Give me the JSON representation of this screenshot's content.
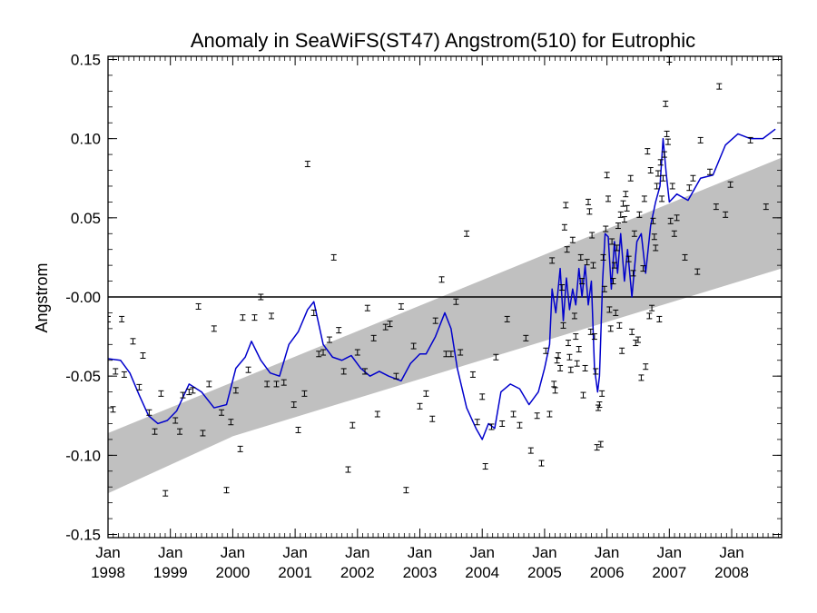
{
  "chart_data": {
    "type": "scatter",
    "title": "Anomaly in SeaWiFS(ST47) Angstrom(510) for Eutrophic",
    "xlabel": "",
    "ylabel": "Angstrom",
    "xlim": [
      1998.0,
      2008.8
    ],
    "ylim": [
      -0.152,
      0.152
    ],
    "y_ticks": [
      {
        "value": 0.15,
        "label": "0.15"
      },
      {
        "value": 0.1,
        "label": "0.10"
      },
      {
        "value": 0.05,
        "label": "0.05"
      },
      {
        "value": 0.0,
        "label": "-0.00"
      },
      {
        "value": -0.05,
        "label": "-0.05"
      },
      {
        "value": -0.1,
        "label": "-0.10"
      },
      {
        "value": -0.15,
        "label": "-0.15"
      }
    ],
    "x_ticks": [
      {
        "value": 1998.0,
        "month": "Jan",
        "year": "1998"
      },
      {
        "value": 1999.0,
        "month": "Jan",
        "year": "1999"
      },
      {
        "value": 2000.0,
        "month": "Jan",
        "year": "2000"
      },
      {
        "value": 2001.0,
        "month": "Jan",
        "year": "2001"
      },
      {
        "value": 2002.0,
        "month": "Jan",
        "year": "2002"
      },
      {
        "value": 2003.0,
        "month": "Jan",
        "year": "2003"
      },
      {
        "value": 2004.0,
        "month": "Jan",
        "year": "2004"
      },
      {
        "value": 2005.0,
        "month": "Jan",
        "year": "2005"
      },
      {
        "value": 2006.0,
        "month": "Jan",
        "year": "2006"
      },
      {
        "value": 2007.0,
        "month": "Jan",
        "year": "2007"
      },
      {
        "value": 2008.0,
        "month": "Jan",
        "year": "2008"
      }
    ],
    "zero_line": 0.0,
    "confidence_band": {
      "color": "#c0c0c0",
      "upper": [
        [
          1998.0,
          -0.086
        ],
        [
          2008.8,
          0.088
        ]
      ],
      "lower": [
        [
          1998.0,
          -0.124
        ],
        [
          2000.0,
          -0.088
        ],
        [
          2008.8,
          0.018
        ]
      ]
    },
    "smoothed_series": {
      "color": "#0000cc",
      "points": [
        [
          1998.0,
          -0.039
        ],
        [
          1998.2,
          -0.04
        ],
        [
          1998.35,
          -0.048
        ],
        [
          1998.5,
          -0.062
        ],
        [
          1998.65,
          -0.075
        ],
        [
          1998.8,
          -0.08
        ],
        [
          1998.95,
          -0.078
        ],
        [
          1999.1,
          -0.072
        ],
        [
          1999.3,
          -0.055
        ],
        [
          1999.5,
          -0.06
        ],
        [
          1999.7,
          -0.07
        ],
        [
          1999.9,
          -0.068
        ],
        [
          2000.05,
          -0.045
        ],
        [
          2000.2,
          -0.038
        ],
        [
          2000.3,
          -0.028
        ],
        [
          2000.45,
          -0.04
        ],
        [
          2000.6,
          -0.048
        ],
        [
          2000.75,
          -0.05
        ],
        [
          2000.9,
          -0.03
        ],
        [
          2001.05,
          -0.022
        ],
        [
          2001.2,
          -0.008
        ],
        [
          2001.3,
          -0.003
        ],
        [
          2001.45,
          -0.03
        ],
        [
          2001.6,
          -0.038
        ],
        [
          2001.75,
          -0.04
        ],
        [
          2001.9,
          -0.037
        ],
        [
          2002.05,
          -0.045
        ],
        [
          2002.2,
          -0.05
        ],
        [
          2002.35,
          -0.047
        ],
        [
          2002.5,
          -0.05
        ],
        [
          2002.7,
          -0.053
        ],
        [
          2002.85,
          -0.042
        ],
        [
          2003.0,
          -0.036
        ],
        [
          2003.1,
          -0.036
        ],
        [
          2003.25,
          -0.025
        ],
        [
          2003.4,
          -0.01
        ],
        [
          2003.5,
          -0.02
        ],
        [
          2003.6,
          -0.045
        ],
        [
          2003.75,
          -0.07
        ],
        [
          2003.9,
          -0.083
        ],
        [
          2004.0,
          -0.09
        ],
        [
          2004.1,
          -0.08
        ],
        [
          2004.2,
          -0.083
        ],
        [
          2004.3,
          -0.06
        ],
        [
          2004.45,
          -0.055
        ],
        [
          2004.6,
          -0.058
        ],
        [
          2004.75,
          -0.068
        ],
        [
          2004.9,
          -0.06
        ],
        [
          2005.0,
          -0.045
        ],
        [
          2005.08,
          -0.03
        ],
        [
          2005.12,
          0.005
        ],
        [
          2005.18,
          -0.01
        ],
        [
          2005.25,
          0.018
        ],
        [
          2005.3,
          -0.015
        ],
        [
          2005.35,
          0.012
        ],
        [
          2005.4,
          -0.008
        ],
        [
          2005.45,
          0.005
        ],
        [
          2005.5,
          -0.005
        ],
        [
          2005.55,
          0.018
        ],
        [
          2005.6,
          0.0
        ],
        [
          2005.65,
          0.02
        ],
        [
          2005.7,
          -0.005
        ],
        [
          2005.75,
          0.01
        ],
        [
          2005.8,
          -0.045
        ],
        [
          2005.85,
          -0.06
        ],
        [
          2005.88,
          -0.05
        ],
        [
          2005.93,
          0.01
        ],
        [
          2005.97,
          0.04
        ],
        [
          2006.02,
          0.038
        ],
        [
          2006.07,
          0.005
        ],
        [
          2006.12,
          0.035
        ],
        [
          2006.17,
          0.015
        ],
        [
          2006.22,
          0.04
        ],
        [
          2006.28,
          0.01
        ],
        [
          2006.33,
          0.03
        ],
        [
          2006.4,
          0.0
        ],
        [
          2006.48,
          0.035
        ],
        [
          2006.55,
          0.04
        ],
        [
          2006.62,
          0.015
        ],
        [
          2006.7,
          0.045
        ],
        [
          2006.78,
          0.06
        ],
        [
          2006.85,
          0.07
        ],
        [
          2006.9,
          0.1
        ],
        [
          2006.95,
          0.078
        ],
        [
          2007.0,
          0.06
        ],
        [
          2007.12,
          0.065
        ],
        [
          2007.3,
          0.061
        ],
        [
          2007.5,
          0.075
        ],
        [
          2007.7,
          0.077
        ],
        [
          2007.9,
          0.096
        ],
        [
          2008.1,
          0.103
        ],
        [
          2008.3,
          0.1
        ],
        [
          2008.5,
          0.1
        ],
        [
          2008.7,
          0.106
        ]
      ]
    },
    "points": [
      [
        1998.0,
        -0.014
      ],
      [
        1998.08,
        -0.071
      ],
      [
        1998.12,
        -0.047
      ],
      [
        1998.22,
        -0.014
      ],
      [
        1998.26,
        -0.049
      ],
      [
        1998.4,
        -0.028
      ],
      [
        1998.5,
        -0.057
      ],
      [
        1998.56,
        -0.037
      ],
      [
        1998.66,
        -0.073
      ],
      [
        1998.75,
        -0.085
      ],
      [
        1998.85,
        -0.061
      ],
      [
        1998.92,
        -0.124
      ],
      [
        1999.08,
        -0.078
      ],
      [
        1999.15,
        -0.085
      ],
      [
        1999.2,
        -0.062
      ],
      [
        1999.3,
        -0.06
      ],
      [
        1999.36,
        -0.059
      ],
      [
        1999.45,
        -0.006
      ],
      [
        1999.52,
        -0.086
      ],
      [
        1999.62,
        -0.055
      ],
      [
        1999.7,
        -0.02
      ],
      [
        1999.82,
        -0.073
      ],
      [
        1999.9,
        -0.122
      ],
      [
        1999.97,
        -0.079
      ],
      [
        2000.05,
        -0.059
      ],
      [
        2000.12,
        -0.096
      ],
      [
        2000.16,
        -0.013
      ],
      [
        2000.25,
        -0.046
      ],
      [
        2000.35,
        -0.013
      ],
      [
        2000.45,
        0.0
      ],
      [
        2000.55,
        -0.055
      ],
      [
        2000.62,
        -0.012
      ],
      [
        2000.7,
        -0.055
      ],
      [
        2000.82,
        -0.054
      ],
      [
        2000.98,
        -0.068
      ],
      [
        2001.05,
        -0.084
      ],
      [
        2001.15,
        -0.061
      ],
      [
        2001.2,
        0.084
      ],
      [
        2001.3,
        -0.01
      ],
      [
        2001.38,
        -0.036
      ],
      [
        2001.45,
        -0.035
      ],
      [
        2001.55,
        -0.027
      ],
      [
        2001.62,
        0.025
      ],
      [
        2001.7,
        -0.021
      ],
      [
        2001.78,
        -0.047
      ],
      [
        2001.85,
        -0.109
      ],
      [
        2001.92,
        -0.081
      ],
      [
        2002.0,
        -0.035
      ],
      [
        2002.12,
        -0.047
      ],
      [
        2002.16,
        -0.007
      ],
      [
        2002.26,
        -0.026
      ],
      [
        2002.32,
        -0.074
      ],
      [
        2002.45,
        -0.019
      ],
      [
        2002.52,
        -0.017
      ],
      [
        2002.62,
        -0.05
      ],
      [
        2002.7,
        -0.006
      ],
      [
        2002.78,
        -0.122
      ],
      [
        2002.9,
        -0.031
      ],
      [
        2003.0,
        -0.069
      ],
      [
        2003.1,
        -0.061
      ],
      [
        2003.2,
        -0.077
      ],
      [
        2003.25,
        -0.015
      ],
      [
        2003.35,
        0.011
      ],
      [
        2003.42,
        -0.036
      ],
      [
        2003.5,
        -0.036
      ],
      [
        2003.58,
        -0.003
      ],
      [
        2003.65,
        -0.035
      ],
      [
        2003.75,
        0.04
      ],
      [
        2003.85,
        -0.049
      ],
      [
        2003.92,
        -0.079
      ],
      [
        2004.0,
        -0.063
      ],
      [
        2004.05,
        -0.107
      ],
      [
        2004.15,
        -0.082
      ],
      [
        2004.22,
        -0.038
      ],
      [
        2004.32,
        -0.08
      ],
      [
        2004.4,
        -0.014
      ],
      [
        2004.5,
        -0.074
      ],
      [
        2004.6,
        -0.081
      ],
      [
        2004.7,
        -0.026
      ],
      [
        2004.78,
        -0.097
      ],
      [
        2004.88,
        -0.075
      ],
      [
        2004.95,
        -0.105
      ],
      [
        2005.02,
        -0.034
      ],
      [
        2005.08,
        -0.074
      ],
      [
        2005.12,
        0.023
      ],
      [
        2005.15,
        -0.055
      ],
      [
        2005.17,
        -0.059
      ],
      [
        2005.2,
        -0.04
      ],
      [
        2005.22,
        -0.037
      ],
      [
        2005.25,
        -0.045
      ],
      [
        2005.28,
        0.006
      ],
      [
        2005.3,
        -0.018
      ],
      [
        2005.32,
        0.044
      ],
      [
        2005.34,
        0.058
      ],
      [
        2005.36,
        0.03
      ],
      [
        2005.38,
        -0.029
      ],
      [
        2005.4,
        -0.038
      ],
      [
        2005.42,
        -0.046
      ],
      [
        2005.45,
        0.036
      ],
      [
        2005.48,
        -0.012
      ],
      [
        2005.5,
        -0.025
      ],
      [
        2005.52,
        -0.042
      ],
      [
        2005.55,
        -0.033
      ],
      [
        2005.58,
        0.025
      ],
      [
        2005.6,
        0.01
      ],
      [
        2005.62,
        -0.062
      ],
      [
        2005.65,
        -0.045
      ],
      [
        2005.68,
        0.022
      ],
      [
        2005.7,
        0.06
      ],
      [
        2005.72,
        0.054
      ],
      [
        2005.74,
        -0.022
      ],
      [
        2005.76,
        0.039
      ],
      [
        2005.78,
        0.02
      ],
      [
        2005.8,
        -0.025
      ],
      [
        2005.82,
        -0.047
      ],
      [
        2005.84,
        -0.095
      ],
      [
        2005.86,
        -0.07
      ],
      [
        2005.88,
        -0.068
      ],
      [
        2005.9,
        -0.093
      ],
      [
        2005.92,
        -0.061
      ],
      [
        2005.94,
        0.025
      ],
      [
        2005.96,
        0.005
      ],
      [
        2005.98,
        0.043
      ],
      [
        2006.0,
        0.077
      ],
      [
        2006.02,
        0.062
      ],
      [
        2006.04,
        -0.008
      ],
      [
        2006.06,
        -0.02
      ],
      [
        2006.08,
        0.035
      ],
      [
        2006.1,
        0.01
      ],
      [
        2006.12,
        0.02
      ],
      [
        2006.14,
        -0.01
      ],
      [
        2006.16,
        0.031
      ],
      [
        2006.18,
        0.045
      ],
      [
        2006.2,
        -0.018
      ],
      [
        2006.22,
        0.052
      ],
      [
        2006.24,
        -0.034
      ],
      [
        2006.26,
        0.059
      ],
      [
        2006.28,
        0.049
      ],
      [
        2006.3,
        0.065
      ],
      [
        2006.32,
        0.056
      ],
      [
        2006.35,
        0.024
      ],
      [
        2006.38,
        0.075
      ],
      [
        2006.4,
        -0.022
      ],
      [
        2006.42,
        0.015
      ],
      [
        2006.44,
        0.04
      ],
      [
        2006.46,
        -0.029
      ],
      [
        2006.5,
        -0.027
      ],
      [
        2006.52,
        0.052
      ],
      [
        2006.55,
        -0.051
      ],
      [
        2006.58,
        0.018
      ],
      [
        2006.6,
        0.062
      ],
      [
        2006.62,
        -0.044
      ],
      [
        2006.65,
        0.092
      ],
      [
        2006.68,
        -0.012
      ],
      [
        2006.7,
        0.08
      ],
      [
        2006.72,
        -0.007
      ],
      [
        2006.74,
        0.048
      ],
      [
        2006.76,
        0.038
      ],
      [
        2006.78,
        0.031
      ],
      [
        2006.8,
        0.07
      ],
      [
        2006.82,
        0.078
      ],
      [
        2006.84,
        -0.014
      ],
      [
        2006.86,
        0.085
      ],
      [
        2006.88,
        0.062
      ],
      [
        2006.9,
        0.075
      ],
      [
        2006.92,
        0.09
      ],
      [
        2006.94,
        0.122
      ],
      [
        2006.96,
        0.103
      ],
      [
        2006.98,
        0.098
      ],
      [
        2007.0,
        0.15
      ],
      [
        2007.02,
        0.048
      ],
      [
        2007.05,
        0.07
      ],
      [
        2007.08,
        0.04
      ],
      [
        2007.12,
        0.05
      ],
      [
        2007.25,
        0.025
      ],
      [
        2007.32,
        0.069
      ],
      [
        2007.38,
        0.075
      ],
      [
        2007.45,
        0.016
      ],
      [
        2007.5,
        0.099
      ],
      [
        2007.65,
        0.079
      ],
      [
        2007.75,
        0.057
      ],
      [
        2007.8,
        0.133
      ],
      [
        2007.9,
        0.052
      ],
      [
        2007.98,
        0.071
      ],
      [
        2008.3,
        0.099
      ],
      [
        2008.55,
        0.057
      ]
    ]
  }
}
